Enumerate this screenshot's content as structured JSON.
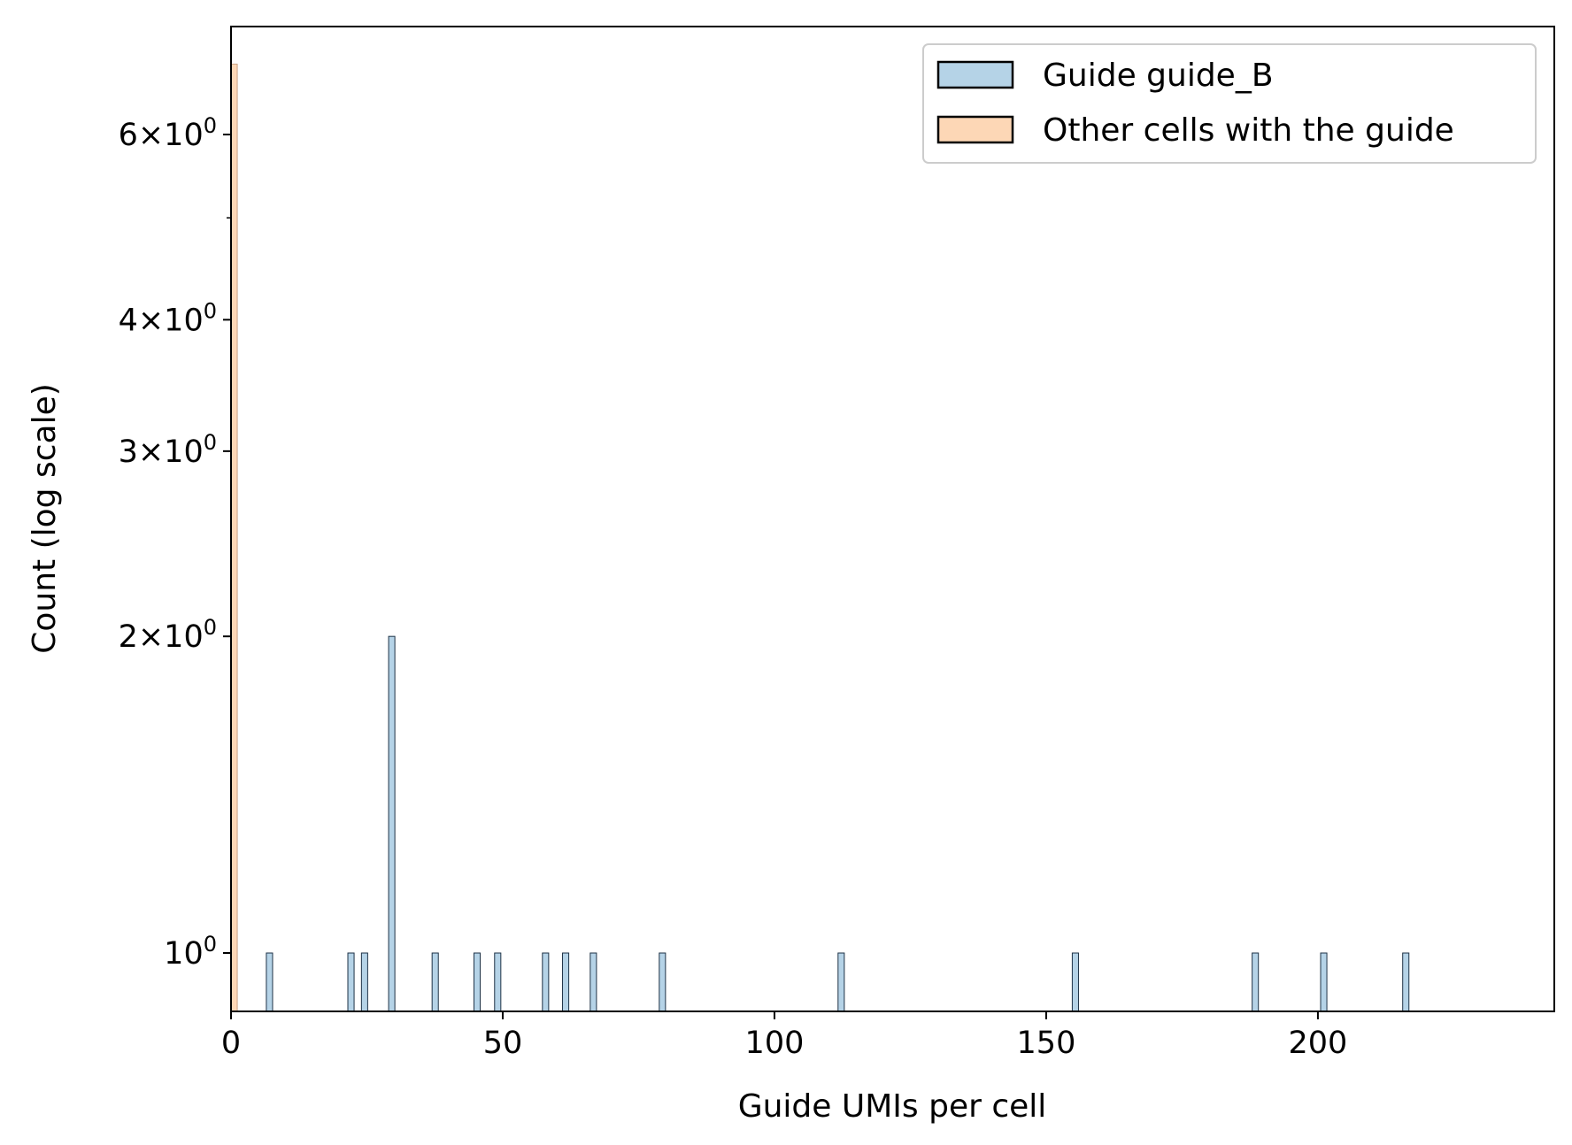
{
  "chart_data": {
    "type": "bar",
    "subtype": "histogram",
    "xlabel": "Guide UMIs per cell",
    "ylabel": "Count (log scale)",
    "xlim": [
      0,
      243.5
    ],
    "ylim": [
      0.88,
      7.6
    ],
    "yscale": "log",
    "bin_width": 1.15,
    "x_ticks": [
      {
        "value": 0,
        "label": "0"
      },
      {
        "value": 50,
        "label": "50"
      },
      {
        "value": 100,
        "label": "100"
      },
      {
        "value": 150,
        "label": "150"
      },
      {
        "value": 200,
        "label": "200"
      }
    ],
    "y_ticks": [
      {
        "value": 1,
        "base": "10",
        "exp": "0"
      },
      {
        "value": 2,
        "base": "2×10",
        "exp": "0"
      },
      {
        "value": 3,
        "base": "3×10",
        "exp": "0"
      },
      {
        "value": 4,
        "base": "4×10",
        "exp": "0"
      },
      {
        "value": 6,
        "base": "6×10",
        "exp": "0"
      }
    ],
    "y_minor_ticks": [
      5
    ],
    "legend_position": "top-right",
    "series": [
      {
        "name": "Guide guide_B",
        "color": "#b5d3e7",
        "edge": "#1f3347",
        "bins": [
          {
            "x": 6.5,
            "count": 1
          },
          {
            "x": 21.5,
            "count": 1
          },
          {
            "x": 24,
            "count": 1
          },
          {
            "x": 29,
            "count": 2
          },
          {
            "x": 37,
            "count": 1
          },
          {
            "x": 44.7,
            "count": 1
          },
          {
            "x": 48.5,
            "count": 1
          },
          {
            "x": 57.3,
            "count": 1
          },
          {
            "x": 61,
            "count": 1
          },
          {
            "x": 66.1,
            "count": 1
          },
          {
            "x": 78.8,
            "count": 1
          },
          {
            "x": 111.7,
            "count": 1
          },
          {
            "x": 154.8,
            "count": 1
          },
          {
            "x": 187.9,
            "count": 1
          },
          {
            "x": 200.5,
            "count": 1
          },
          {
            "x": 215.6,
            "count": 1
          }
        ]
      },
      {
        "name": "Other cells with the guide",
        "color": "#fdd7b6",
        "edge": "#c9a487",
        "bins": [
          {
            "x": 0,
            "count": 7
          }
        ]
      }
    ]
  }
}
